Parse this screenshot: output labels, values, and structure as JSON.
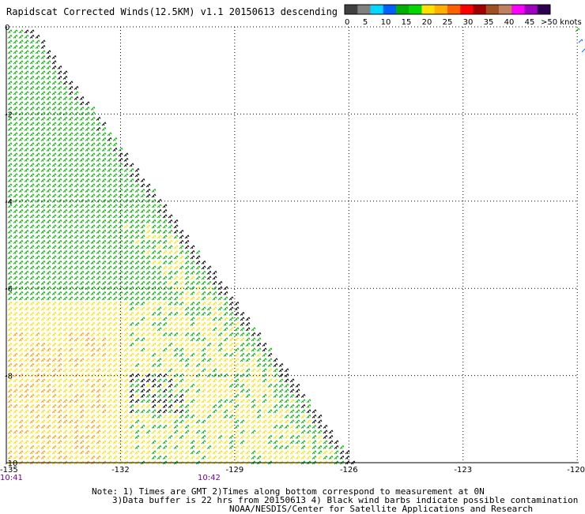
{
  "title": "Rapidscat Corrected Winds(12.5KM) v1.1 20150613 descending",
  "color_scale": {
    "labels": [
      "0",
      "5",
      "10",
      "15",
      "20",
      "25",
      "30",
      "35",
      "40",
      "45",
      ">50 knots"
    ],
    "colors": [
      "#404040",
      "#808080",
      "#00d8ff",
      "#0060ff",
      "#00b000",
      "#00d800",
      "#ffe000",
      "#ffb000",
      "#ff6000",
      "#ff0000",
      "#a00000",
      "#a05020",
      "#c08060",
      "#ff00ff",
      "#a000c0",
      "#300050"
    ]
  },
  "axes": {
    "y_ticks": [
      "0",
      "-2",
      "-4",
      "-6",
      "-8",
      "-10"
    ],
    "x_ticks": [
      "-135",
      "-132",
      "-129",
      "-126",
      "-123",
      "-120"
    ],
    "y_range": [
      -10,
      0
    ],
    "x_range": [
      -135,
      -120
    ]
  },
  "times": [
    "10:41",
    "10:42"
  ],
  "notes": {
    "line1": "Note: 1) Times are GMT 2)Times along bottom correspond to measurement at 0N",
    "line2": "3)Data buffer is 22 hrs from 20150613 4) Black wind barbs indicate possible contamination",
    "line3": "NOAA/NESDIS/Center for Satellite Applications and Research"
  },
  "swath_colors": {
    "light": "#00b000",
    "moderate": "#ffe000",
    "strong": "#ffa000",
    "contaminated": "#000000"
  }
}
